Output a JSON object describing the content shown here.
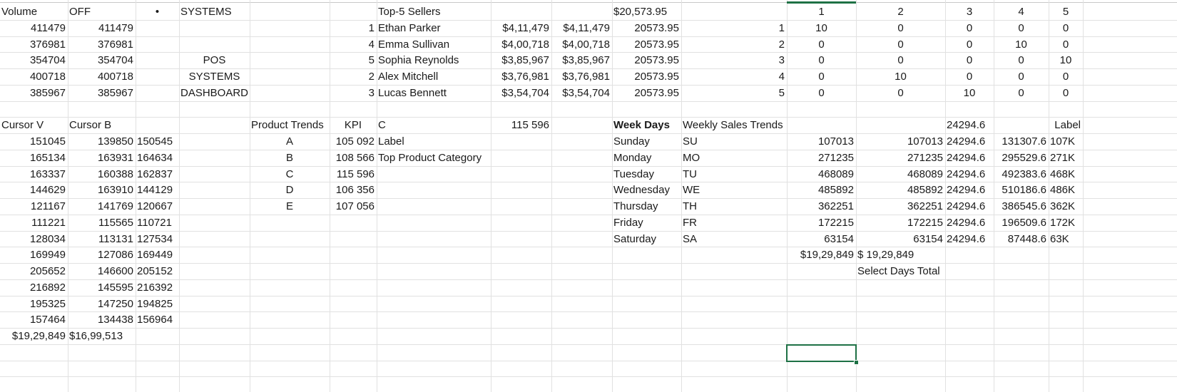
{
  "sheet": {
    "cells": [
      {
        "row": 1,
        "col": "A",
        "value": "Volume",
        "align": "l"
      },
      {
        "row": 1,
        "col": "B",
        "value": "OFF",
        "align": "l"
      },
      {
        "row": 1,
        "col": "C",
        "value": "•",
        "align": "c"
      },
      {
        "row": 1,
        "col": "D",
        "value": "SYSTEMS",
        "align": "l"
      },
      {
        "row": 1,
        "col": "G",
        "value": "Top-5 Sellers",
        "align": "l"
      },
      {
        "row": 1,
        "col": "J",
        "value": "$20,573.95",
        "align": "l"
      },
      {
        "row": 1,
        "col": "L",
        "value": "1",
        "align": "c"
      },
      {
        "row": 1,
        "col": "M",
        "value": "2",
        "align": "c"
      },
      {
        "row": 1,
        "col": "N",
        "value": "3",
        "align": "c"
      },
      {
        "row": 1,
        "col": "O",
        "value": "4",
        "align": "c"
      },
      {
        "row": 1,
        "col": "P",
        "value": "5",
        "align": "c"
      },
      {
        "row": 2,
        "col": "A",
        "value": "411479",
        "align": "r"
      },
      {
        "row": 2,
        "col": "B",
        "value": "411479",
        "align": "r"
      },
      {
        "row": 2,
        "col": "F",
        "value": "1",
        "align": "r"
      },
      {
        "row": 2,
        "col": "G",
        "value": "Ethan Parker",
        "align": "l"
      },
      {
        "row": 2,
        "col": "H",
        "value": "$4,11,479",
        "align": "r"
      },
      {
        "row": 2,
        "col": "I",
        "value": "$4,11,479",
        "align": "r"
      },
      {
        "row": 2,
        "col": "J",
        "value": "20573.95",
        "align": "r"
      },
      {
        "row": 2,
        "col": "K",
        "value": "1",
        "align": "r"
      },
      {
        "row": 2,
        "col": "L",
        "value": "10",
        "align": "c"
      },
      {
        "row": 2,
        "col": "M",
        "value": "0",
        "align": "c"
      },
      {
        "row": 2,
        "col": "N",
        "value": "0",
        "align": "c"
      },
      {
        "row": 2,
        "col": "O",
        "value": "0",
        "align": "c"
      },
      {
        "row": 2,
        "col": "P",
        "value": "0",
        "align": "c"
      },
      {
        "row": 3,
        "col": "A",
        "value": "376981",
        "align": "r"
      },
      {
        "row": 3,
        "col": "B",
        "value": "376981",
        "align": "r"
      },
      {
        "row": 3,
        "col": "F",
        "value": "4",
        "align": "r"
      },
      {
        "row": 3,
        "col": "G",
        "value": "Emma Sullivan",
        "align": "l"
      },
      {
        "row": 3,
        "col": "H",
        "value": "$4,00,718",
        "align": "r"
      },
      {
        "row": 3,
        "col": "I",
        "value": "$4,00,718",
        "align": "r"
      },
      {
        "row": 3,
        "col": "J",
        "value": "20573.95",
        "align": "r"
      },
      {
        "row": 3,
        "col": "K",
        "value": "2",
        "align": "r"
      },
      {
        "row": 3,
        "col": "L",
        "value": "0",
        "align": "c"
      },
      {
        "row": 3,
        "col": "M",
        "value": "0",
        "align": "c"
      },
      {
        "row": 3,
        "col": "N",
        "value": "0",
        "align": "c"
      },
      {
        "row": 3,
        "col": "O",
        "value": "10",
        "align": "c"
      },
      {
        "row": 3,
        "col": "P",
        "value": "0",
        "align": "c"
      },
      {
        "row": 4,
        "col": "A",
        "value": "354704",
        "align": "r"
      },
      {
        "row": 4,
        "col": "B",
        "value": "354704",
        "align": "r"
      },
      {
        "row": 4,
        "col": "D",
        "value": "POS",
        "align": "c"
      },
      {
        "row": 4,
        "col": "F",
        "value": "5",
        "align": "r"
      },
      {
        "row": 4,
        "col": "G",
        "value": "Sophia Reynolds",
        "align": "l"
      },
      {
        "row": 4,
        "col": "H",
        "value": "$3,85,967",
        "align": "r"
      },
      {
        "row": 4,
        "col": "I",
        "value": "$3,85,967",
        "align": "r"
      },
      {
        "row": 4,
        "col": "J",
        "value": "20573.95",
        "align": "r"
      },
      {
        "row": 4,
        "col": "K",
        "value": "3",
        "align": "r"
      },
      {
        "row": 4,
        "col": "L",
        "value": "0",
        "align": "c"
      },
      {
        "row": 4,
        "col": "M",
        "value": "0",
        "align": "c"
      },
      {
        "row": 4,
        "col": "N",
        "value": "0",
        "align": "c"
      },
      {
        "row": 4,
        "col": "O",
        "value": "0",
        "align": "c"
      },
      {
        "row": 4,
        "col": "P",
        "value": "10",
        "align": "c"
      },
      {
        "row": 5,
        "col": "A",
        "value": "400718",
        "align": "r"
      },
      {
        "row": 5,
        "col": "B",
        "value": "400718",
        "align": "r"
      },
      {
        "row": 5,
        "col": "D",
        "value": "SYSTEMS",
        "align": "c"
      },
      {
        "row": 5,
        "col": "F",
        "value": "2",
        "align": "r"
      },
      {
        "row": 5,
        "col": "G",
        "value": "Alex Mitchell",
        "align": "l"
      },
      {
        "row": 5,
        "col": "H",
        "value": "$3,76,981",
        "align": "r"
      },
      {
        "row": 5,
        "col": "I",
        "value": "$3,76,981",
        "align": "r"
      },
      {
        "row": 5,
        "col": "J",
        "value": "20573.95",
        "align": "r"
      },
      {
        "row": 5,
        "col": "K",
        "value": "4",
        "align": "r"
      },
      {
        "row": 5,
        "col": "L",
        "value": "0",
        "align": "c"
      },
      {
        "row": 5,
        "col": "M",
        "value": "10",
        "align": "c"
      },
      {
        "row": 5,
        "col": "N",
        "value": "0",
        "align": "c"
      },
      {
        "row": 5,
        "col": "O",
        "value": "0",
        "align": "c"
      },
      {
        "row": 5,
        "col": "P",
        "value": "0",
        "align": "c"
      },
      {
        "row": 6,
        "col": "A",
        "value": "385967",
        "align": "r"
      },
      {
        "row": 6,
        "col": "B",
        "value": "385967",
        "align": "r"
      },
      {
        "row": 6,
        "col": "D",
        "value": "DASHBOARD",
        "align": "c"
      },
      {
        "row": 6,
        "col": "F",
        "value": "3",
        "align": "r"
      },
      {
        "row": 6,
        "col": "G",
        "value": "Lucas Bennett",
        "align": "l"
      },
      {
        "row": 6,
        "col": "H",
        "value": "$3,54,704",
        "align": "r"
      },
      {
        "row": 6,
        "col": "I",
        "value": "$3,54,704",
        "align": "r"
      },
      {
        "row": 6,
        "col": "J",
        "value": "20573.95",
        "align": "r"
      },
      {
        "row": 6,
        "col": "K",
        "value": "5",
        "align": "r"
      },
      {
        "row": 6,
        "col": "L",
        "value": "0",
        "align": "c"
      },
      {
        "row": 6,
        "col": "M",
        "value": "0",
        "align": "c"
      },
      {
        "row": 6,
        "col": "N",
        "value": "10",
        "align": "c"
      },
      {
        "row": 6,
        "col": "O",
        "value": "0",
        "align": "c"
      },
      {
        "row": 6,
        "col": "P",
        "value": "0",
        "align": "c"
      },
      {
        "row": 8,
        "col": "A",
        "value": "Cursor V",
        "align": "l"
      },
      {
        "row": 8,
        "col": "B",
        "value": "Cursor B",
        "align": "l"
      },
      {
        "row": 8,
        "col": "E",
        "value": "Product Trends",
        "align": "l"
      },
      {
        "row": 8,
        "col": "F",
        "value": "KPI",
        "align": "c"
      },
      {
        "row": 8,
        "col": "G",
        "value": "C",
        "align": "l"
      },
      {
        "row": 8,
        "col": "H",
        "value": "115 596",
        "align": "r"
      },
      {
        "row": 8,
        "col": "J",
        "value": "Week Days",
        "align": "l",
        "bold": true
      },
      {
        "row": 8,
        "col": "K",
        "value": "Weekly Sales Trends",
        "align": "l"
      },
      {
        "row": 8,
        "col": "N",
        "value": "24294.6",
        "align": "l"
      },
      {
        "row": 8,
        "col": "P",
        "value": "Label",
        "align": "r"
      },
      {
        "row": 9,
        "col": "A",
        "value": "151045",
        "align": "r"
      },
      {
        "row": 9,
        "col": "B",
        "value": "139850",
        "align": "r"
      },
      {
        "row": 9,
        "col": "C",
        "value": "150545",
        "align": "l"
      },
      {
        "row": 9,
        "col": "E",
        "value": "A",
        "align": "c"
      },
      {
        "row": 9,
        "col": "F",
        "value": "105 092",
        "align": "r"
      },
      {
        "row": 9,
        "col": "G",
        "value": "Label",
        "align": "l"
      },
      {
        "row": 9,
        "col": "J",
        "value": "Sunday",
        "align": "l"
      },
      {
        "row": 9,
        "col": "K",
        "value": "SU",
        "align": "l"
      },
      {
        "row": 9,
        "col": "L",
        "value": "107013",
        "align": "r"
      },
      {
        "row": 9,
        "col": "M",
        "value": "107013",
        "align": "r"
      },
      {
        "row": 9,
        "col": "N",
        "value": "24294.6",
        "align": "l"
      },
      {
        "row": 9,
        "col": "O",
        "value": "131307.6",
        "align": "r"
      },
      {
        "row": 9,
        "col": "P",
        "value": "107K",
        "align": "l"
      },
      {
        "row": 10,
        "col": "A",
        "value": "165134",
        "align": "r"
      },
      {
        "row": 10,
        "col": "B",
        "value": "163931",
        "align": "r"
      },
      {
        "row": 10,
        "col": "C",
        "value": "164634",
        "align": "l"
      },
      {
        "row": 10,
        "col": "E",
        "value": "B",
        "align": "c"
      },
      {
        "row": 10,
        "col": "F",
        "value": "108 566",
        "align": "r"
      },
      {
        "row": 10,
        "col": "G",
        "value": "Top Product Category",
        "align": "l"
      },
      {
        "row": 10,
        "col": "J",
        "value": "Monday",
        "align": "l"
      },
      {
        "row": 10,
        "col": "K",
        "value": "MO",
        "align": "l"
      },
      {
        "row": 10,
        "col": "L",
        "value": "271235",
        "align": "r"
      },
      {
        "row": 10,
        "col": "M",
        "value": "271235",
        "align": "r"
      },
      {
        "row": 10,
        "col": "N",
        "value": "24294.6",
        "align": "l"
      },
      {
        "row": 10,
        "col": "O",
        "value": "295529.6",
        "align": "r"
      },
      {
        "row": 10,
        "col": "P",
        "value": "271K",
        "align": "l"
      },
      {
        "row": 11,
        "col": "A",
        "value": "163337",
        "align": "r"
      },
      {
        "row": 11,
        "col": "B",
        "value": "160388",
        "align": "r"
      },
      {
        "row": 11,
        "col": "C",
        "value": "162837",
        "align": "l"
      },
      {
        "row": 11,
        "col": "E",
        "value": "C",
        "align": "c"
      },
      {
        "row": 11,
        "col": "F",
        "value": "115 596",
        "align": "r"
      },
      {
        "row": 11,
        "col": "J",
        "value": "Tuesday",
        "align": "l"
      },
      {
        "row": 11,
        "col": "K",
        "value": "TU",
        "align": "l"
      },
      {
        "row": 11,
        "col": "L",
        "value": "468089",
        "align": "r"
      },
      {
        "row": 11,
        "col": "M",
        "value": "468089",
        "align": "r"
      },
      {
        "row": 11,
        "col": "N",
        "value": "24294.6",
        "align": "l"
      },
      {
        "row": 11,
        "col": "O",
        "value": "492383.6",
        "align": "r"
      },
      {
        "row": 11,
        "col": "P",
        "value": "468K",
        "align": "l"
      },
      {
        "row": 12,
        "col": "A",
        "value": "144629",
        "align": "r"
      },
      {
        "row": 12,
        "col": "B",
        "value": "163910",
        "align": "r"
      },
      {
        "row": 12,
        "col": "C",
        "value": "144129",
        "align": "l"
      },
      {
        "row": 12,
        "col": "E",
        "value": "D",
        "align": "c"
      },
      {
        "row": 12,
        "col": "F",
        "value": "106 356",
        "align": "r"
      },
      {
        "row": 12,
        "col": "J",
        "value": "Wednesday",
        "align": "l"
      },
      {
        "row": 12,
        "col": "K",
        "value": "WE",
        "align": "l"
      },
      {
        "row": 12,
        "col": "L",
        "value": "485892",
        "align": "r"
      },
      {
        "row": 12,
        "col": "M",
        "value": "485892",
        "align": "r"
      },
      {
        "row": 12,
        "col": "N",
        "value": "24294.6",
        "align": "l"
      },
      {
        "row": 12,
        "col": "O",
        "value": "510186.6",
        "align": "r"
      },
      {
        "row": 12,
        "col": "P",
        "value": "486K",
        "align": "l"
      },
      {
        "row": 13,
        "col": "A",
        "value": "121167",
        "align": "r"
      },
      {
        "row": 13,
        "col": "B",
        "value": "141769",
        "align": "r"
      },
      {
        "row": 13,
        "col": "C",
        "value": "120667",
        "align": "l"
      },
      {
        "row": 13,
        "col": "E",
        "value": "E",
        "align": "c"
      },
      {
        "row": 13,
        "col": "F",
        "value": "107 056",
        "align": "r"
      },
      {
        "row": 13,
        "col": "J",
        "value": "Thursday",
        "align": "l"
      },
      {
        "row": 13,
        "col": "K",
        "value": "TH",
        "align": "l"
      },
      {
        "row": 13,
        "col": "L",
        "value": "362251",
        "align": "r"
      },
      {
        "row": 13,
        "col": "M",
        "value": "362251",
        "align": "r"
      },
      {
        "row": 13,
        "col": "N",
        "value": "24294.6",
        "align": "l"
      },
      {
        "row": 13,
        "col": "O",
        "value": "386545.6",
        "align": "r"
      },
      {
        "row": 13,
        "col": "P",
        "value": "362K",
        "align": "l"
      },
      {
        "row": 14,
        "col": "A",
        "value": "111221",
        "align": "r"
      },
      {
        "row": 14,
        "col": "B",
        "value": "115565",
        "align": "r"
      },
      {
        "row": 14,
        "col": "C",
        "value": "110721",
        "align": "l"
      },
      {
        "row": 14,
        "col": "J",
        "value": "Friday",
        "align": "l"
      },
      {
        "row": 14,
        "col": "K",
        "value": "FR",
        "align": "l"
      },
      {
        "row": 14,
        "col": "L",
        "value": "172215",
        "align": "r"
      },
      {
        "row": 14,
        "col": "M",
        "value": "172215",
        "align": "r"
      },
      {
        "row": 14,
        "col": "N",
        "value": "24294.6",
        "align": "l"
      },
      {
        "row": 14,
        "col": "O",
        "value": "196509.6",
        "align": "r"
      },
      {
        "row": 14,
        "col": "P",
        "value": "172K",
        "align": "l"
      },
      {
        "row": 15,
        "col": "A",
        "value": "128034",
        "align": "r"
      },
      {
        "row": 15,
        "col": "B",
        "value": "113131",
        "align": "r"
      },
      {
        "row": 15,
        "col": "C",
        "value": "127534",
        "align": "l"
      },
      {
        "row": 15,
        "col": "J",
        "value": "Saturday",
        "align": "l"
      },
      {
        "row": 15,
        "col": "K",
        "value": "SA",
        "align": "l"
      },
      {
        "row": 15,
        "col": "L",
        "value": "63154",
        "align": "r"
      },
      {
        "row": 15,
        "col": "M",
        "value": "63154",
        "align": "r"
      },
      {
        "row": 15,
        "col": "N",
        "value": "24294.6",
        "align": "l"
      },
      {
        "row": 15,
        "col": "O",
        "value": "87448.6",
        "align": "r"
      },
      {
        "row": 15,
        "col": "P",
        "value": "63K",
        "align": "l"
      },
      {
        "row": 16,
        "col": "A",
        "value": "169949",
        "align": "r"
      },
      {
        "row": 16,
        "col": "B",
        "value": "127086",
        "align": "r"
      },
      {
        "row": 16,
        "col": "C",
        "value": "169449",
        "align": "l"
      },
      {
        "row": 16,
        "col": "L",
        "value": "$19,29,849",
        "align": "r"
      },
      {
        "row": 16,
        "col": "M",
        "value": "$      19,29,849",
        "align": "l"
      },
      {
        "row": 17,
        "col": "A",
        "value": "205652",
        "align": "r"
      },
      {
        "row": 17,
        "col": "B",
        "value": "146600",
        "align": "r"
      },
      {
        "row": 17,
        "col": "C",
        "value": "205152",
        "align": "l"
      },
      {
        "row": 17,
        "col": "M",
        "value": "Select Days Total",
        "align": "l"
      },
      {
        "row": 18,
        "col": "A",
        "value": "216892",
        "align": "r"
      },
      {
        "row": 18,
        "col": "B",
        "value": "145595",
        "align": "r"
      },
      {
        "row": 18,
        "col": "C",
        "value": "216392",
        "align": "l"
      },
      {
        "row": 19,
        "col": "A",
        "value": "195325",
        "align": "r"
      },
      {
        "row": 19,
        "col": "B",
        "value": "147250",
        "align": "r"
      },
      {
        "row": 19,
        "col": "C",
        "value": "194825",
        "align": "l"
      },
      {
        "row": 20,
        "col": "A",
        "value": "157464",
        "align": "r"
      },
      {
        "row": 20,
        "col": "B",
        "value": "134438",
        "align": "r"
      },
      {
        "row": 20,
        "col": "C",
        "value": "156964",
        "align": "l"
      },
      {
        "row": 21,
        "col": "A",
        "value": "$19,29,849",
        "align": "r"
      },
      {
        "row": 21,
        "col": "B",
        "value": "$16,99,513",
        "align": "l"
      }
    ],
    "selected_cell": {
      "row": 22,
      "col": "L"
    }
  }
}
